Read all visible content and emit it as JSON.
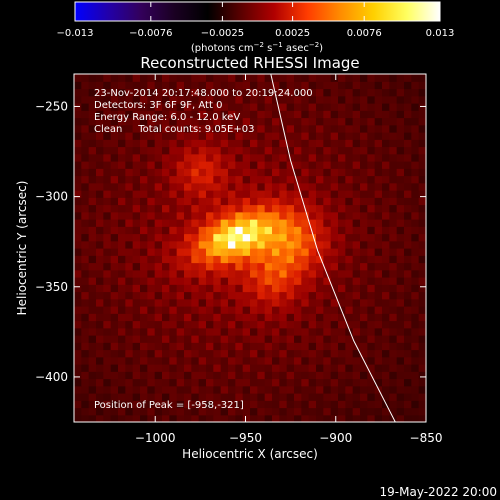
{
  "chart_data": {
    "type": "heatmap",
    "title": "Reconstructed RHESSI Image",
    "xlabel": "Heliocentric X (arcsec)",
    "ylabel": "Heliocentric Y (arcsec)",
    "xlim": [
      -1045,
      -850
    ],
    "ylim": [
      -425,
      -232
    ],
    "x_ticks": [
      -1000,
      -950,
      -900,
      -850
    ],
    "x_tick_labels": [
      "−1000",
      "−950",
      "−900",
      "−850"
    ],
    "y_ticks": [
      -250,
      -300,
      -350,
      -400
    ],
    "y_tick_labels": [
      "−250",
      "−300",
      "−350",
      "−400"
    ],
    "colorbar": {
      "min": -0.013,
      "max": 0.013,
      "ticks": [
        -0.013,
        -0.0076,
        -0.0025,
        0.0025,
        0.0076,
        0.013
      ],
      "tick_labels": [
        "−0.013",
        "−0.0076",
        "−0.0025",
        "0.0025",
        "0.0076",
        "0.013"
      ],
      "colors": [
        "#0000ff",
        "#2200aa",
        "#33005a",
        "#1a0022",
        "#000000",
        "#5a0000",
        "#b00000",
        "#ff3c00",
        "#ff8c00",
        "#ffd000",
        "#ffff60",
        "#ffffff"
      ]
    },
    "units_main": "(photons cm",
    "units_exp1": "−2",
    "units_mid": " s",
    "units_exp2": "−1",
    "units_end": " asec",
    "units_exp3": "−2",
    "units_close": ")",
    "annotations": [
      "23-Nov-2014 20:17:48.000 to 20:19:24.000",
      "Detectors: 3F 6F 9F, Att 0",
      "Energy Range: 6.0 - 12.0 keV",
      "Clean     Total counts: 9.05E+03"
    ],
    "peak_label": "Position of Peak = [-958,-321]",
    "peak": {
      "x": -958,
      "y": -321,
      "value": 0.013
    },
    "source": {
      "x": -955,
      "y": -322,
      "sigma_x": 18,
      "sigma_y": 9,
      "angle_deg": -22
    },
    "secondary_sources": [
      {
        "x": -922,
        "y": -325,
        "amp": 0.55,
        "sigma": 12
      },
      {
        "x": -975,
        "y": -285,
        "amp": 0.35,
        "sigma": 10
      },
      {
        "x": -935,
        "y": -345,
        "amp": 0.4,
        "sigma": 11
      }
    ],
    "limb": [
      {
        "x": -936,
        "y": -232
      },
      {
        "x": -925,
        "y": -280
      },
      {
        "x": -910,
        "y": -330
      },
      {
        "x": -890,
        "y": -380
      },
      {
        "x": -867,
        "y": -425
      }
    ],
    "grid": false
  },
  "footer_date": "19-May-2022 20:00"
}
